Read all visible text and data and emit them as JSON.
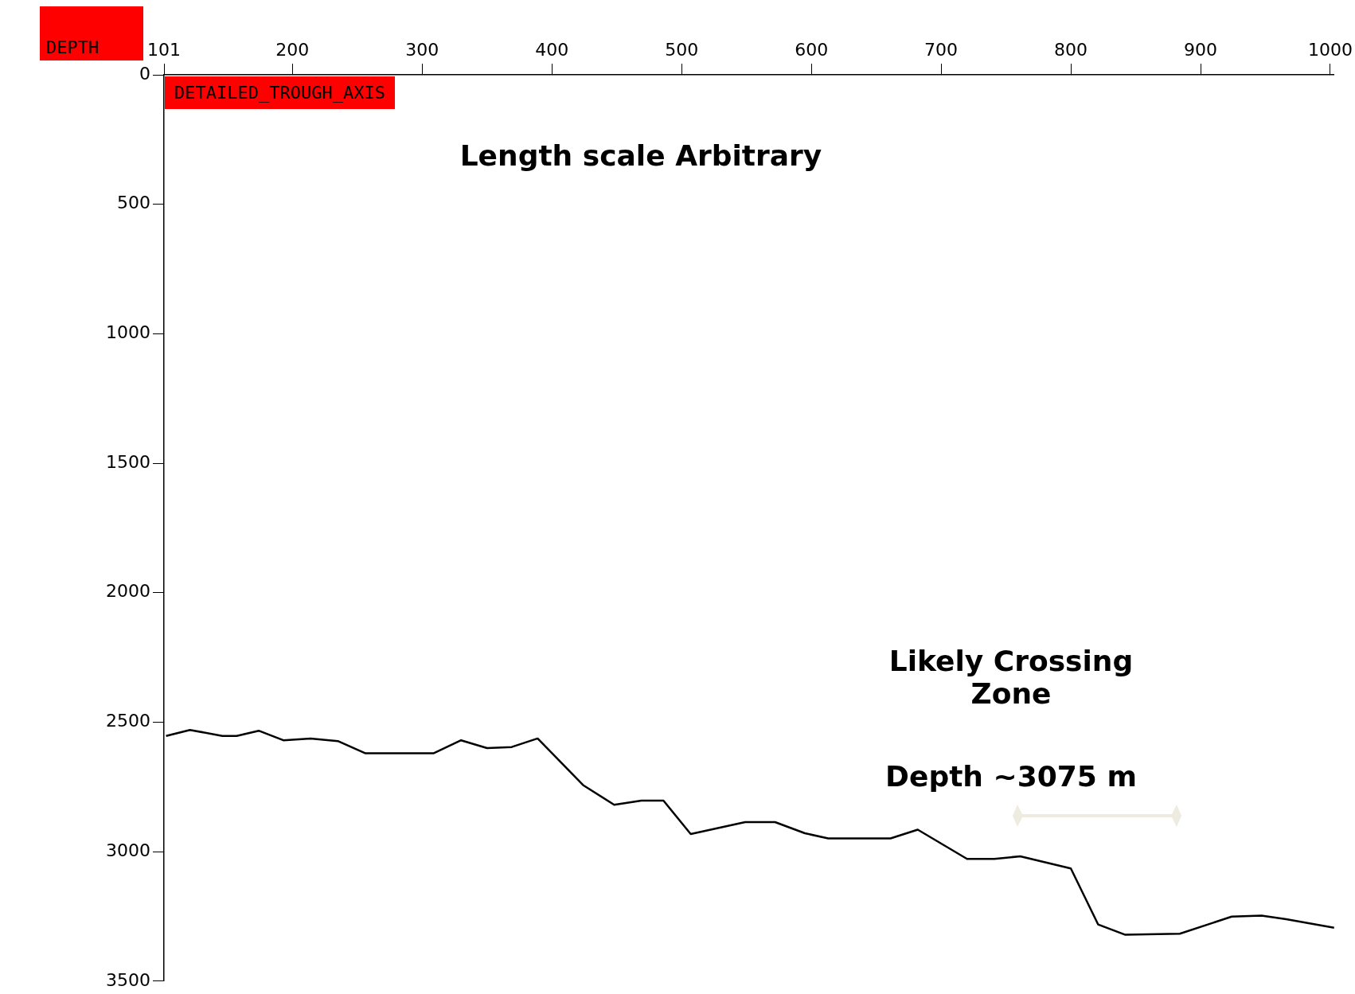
{
  "chart_data": {
    "type": "line",
    "ylabel": "DEPTH",
    "annotations": [
      "DETAILED_TROUGH_AXIS",
      "Length scale Arbitrary",
      "Likely Crossing Zone",
      "Depth ~3075 m"
    ],
    "x": [
      102.6,
      121,
      146,
      157,
      174,
      193,
      214,
      235,
      256,
      309,
      330,
      350,
      369,
      389,
      424,
      448,
      469,
      486,
      507,
      549,
      572,
      595,
      613,
      661,
      682,
      720,
      741,
      761,
      800,
      821,
      842,
      884,
      924,
      947,
      966,
      1003
    ],
    "series": [
      {
        "color": "#000000",
        "values": [
          2553,
          2530,
          2553,
          2553,
          2533,
          2570,
          2563,
          2573,
          2620,
          2620,
          2570,
          2600,
          2596,
          2563,
          2743,
          2819,
          2803,
          2803,
          2932,
          2886,
          2886,
          2929,
          2949,
          2949,
          2915,
          3028,
          3028,
          3018,
          3065,
          3281,
          3321,
          3317,
          3251,
          3247,
          3261,
          3294
        ]
      }
    ],
    "xlim": [
      101,
      1003
    ],
    "xticks": [
      101,
      200,
      300,
      400,
      500,
      600,
      700,
      800,
      900,
      1000
    ],
    "ylim": [
      3500,
      0
    ],
    "yticks": [
      0,
      500,
      1000,
      1500,
      2000,
      2500,
      3000,
      3500
    ],
    "grid": false,
    "legend": false,
    "marker": "none",
    "line_style": "solid"
  }
}
